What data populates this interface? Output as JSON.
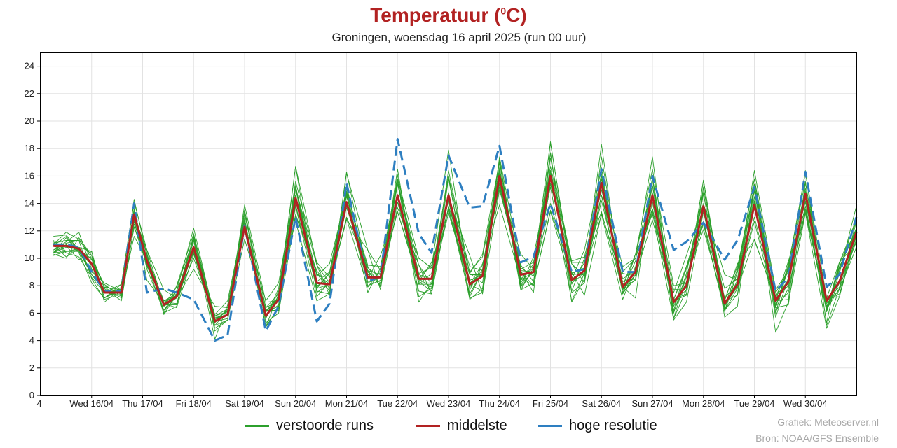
{
  "header": {
    "title_text": "Temperatuur (",
    "title_sup": "0",
    "title_close": "C)",
    "subtitle": "Groningen, woensdag 16 april 2025 (run 00 uur)"
  },
  "legend": {
    "ensemble_label": "verstoorde runs",
    "mean_label": "middelste",
    "hires_label": "hoge resolutie"
  },
  "credits": {
    "line1": "Grafiek: Meteoserver.nl",
    "line2": "Bron: NOAA/GFS Ensemble"
  },
  "colors": {
    "ensemble": "#2ca02c",
    "mean": "#b22222",
    "hires": "#2e7fc1",
    "title": "#b22222",
    "grid": "#e2e2e2"
  },
  "chart_data": {
    "type": "line",
    "title": "Temperatuur (0C)",
    "subtitle": "Groningen, woensdag 16 april 2025 (run 00 uur)",
    "xlabel": "",
    "ylabel": "",
    "ylim": [
      0,
      25
    ],
    "xlim": [
      0,
      96
    ],
    "x_unit": "time step (3-hourly index from start of run)",
    "yticks": [
      0,
      2,
      4,
      6,
      8,
      10,
      12,
      14,
      16,
      18,
      20,
      22,
      24
    ],
    "grid": true,
    "first_tick_label": "4",
    "day_ticks": [
      {
        "x": 6,
        "label": "Wed 16/04"
      },
      {
        "x": 12,
        "label": "Thu 17/04"
      },
      {
        "x": 18,
        "label": "Fri 18/04"
      },
      {
        "x": 24,
        "label": "Sat 19/04"
      },
      {
        "x": 30,
        "label": "Sun 20/04"
      },
      {
        "x": 36,
        "label": "Mon 21/04"
      },
      {
        "x": 42,
        "label": "Tue 22/04"
      },
      {
        "x": 48,
        "label": "Wed 23/04"
      },
      {
        "x": 54,
        "label": "Thu 24/04"
      },
      {
        "x": 60,
        "label": "Fri 25/04"
      },
      {
        "x": 66,
        "label": "Sat 26/04"
      },
      {
        "x": 72,
        "label": "Sun 27/04"
      },
      {
        "x": 78,
        "label": "Mon 28/04"
      },
      {
        "x": 84,
        "label": "Tue 29/04"
      },
      {
        "x": 90,
        "label": "Wed 30/04"
      }
    ],
    "series": [
      {
        "name": "middelste",
        "x": [
          1.5,
          3,
          4.5,
          6,
          7.5,
          9.5,
          11,
          12.5,
          14.5,
          16,
          18,
          20.5,
          22,
          24,
          26.5,
          28,
          30,
          32.5,
          34,
          36,
          38.5,
          40,
          42,
          44.5,
          46,
          48,
          50.5,
          52,
          54,
          56.5,
          58,
          60,
          62.5,
          64,
          66,
          68.5,
          70,
          72,
          74.5,
          76,
          78,
          80.5,
          82,
          84,
          86.5,
          88,
          90,
          92.5,
          94,
          96
        ],
        "values": [
          10.9,
          10.9,
          10.7,
          9.6,
          7.5,
          7.5,
          13.2,
          9.8,
          6.6,
          7.2,
          10.8,
          5.4,
          5.9,
          12.3,
          5.8,
          7.0,
          14.4,
          8.2,
          8.1,
          14.1,
          8.6,
          8.6,
          14.6,
          8.5,
          8.5,
          14.6,
          8.1,
          8.7,
          16.0,
          8.8,
          9.0,
          16.0,
          8.4,
          9.1,
          15.5,
          7.9,
          9.0,
          14.6,
          6.8,
          8.0,
          13.8,
          6.7,
          8.1,
          13.9,
          6.9,
          8.3,
          14.7,
          6.9,
          8.3,
          11.9
        ]
      },
      {
        "name": "hoge resolutie",
        "x": [
          1.5,
          3,
          4.5,
          6,
          7.5,
          9.5,
          11,
          12.5,
          14.5,
          16,
          18,
          20.5,
          22,
          24,
          26.5,
          28,
          30,
          32.5,
          34,
          36,
          38.5,
          40,
          42,
          44.5,
          46,
          48,
          50.5,
          52,
          54,
          56.5,
          58,
          60,
          62.5,
          64,
          66,
          68.5,
          70,
          72,
          74.5,
          76,
          78,
          80.5,
          82,
          84,
          86.5,
          88,
          90,
          92.5,
          94,
          96
        ],
        "values": [
          11.0,
          11.0,
          10.8,
          9.0,
          7.6,
          7.6,
          14.0,
          7.5,
          7.8,
          7.5,
          7.0,
          4.0,
          4.4,
          12.4,
          4.7,
          6.5,
          13.0,
          5.4,
          6.7,
          15.5,
          8.3,
          8.7,
          18.7,
          11.8,
          10.4,
          17.5,
          13.7,
          13.8,
          18.2,
          9.7,
          10.1,
          14.0,
          9.0,
          9.2,
          16.5,
          9.0,
          9.0,
          16.0,
          10.6,
          11.2,
          12.6,
          9.9,
          11.3,
          15.2,
          7.6,
          8.6,
          16.3,
          7.9,
          8.8,
          13.0
        ]
      }
    ],
    "ensemble_members": [
      [
        10.6,
        11.2,
        11.9,
        9.2,
        7.8,
        6.9,
        12.3,
        9.5,
        6.6,
        7.9,
        11.4,
        5.7,
        5.8,
        13.9,
        6.8,
        6.9,
        16.7,
        9.5,
        8.2,
        12.9,
        7.9,
        9.1,
        15.4,
        9.5,
        8.1,
        14.3,
        7.0,
        7.8,
        16.4,
        7.7,
        8.2,
        15.4,
        9.6,
        8.2,
        15.5,
        9.4,
        10.0,
        13.6,
        6.7,
        8.1,
        15.7,
        6.6,
        7.9,
        12.7,
        6.4,
        9.4,
        16.3,
        7.1,
        7.2,
        11.7
      ],
      [
        11.0,
        11.9,
        11.4,
        10.0,
        7.9,
        7.7,
        12.7,
        9.5,
        6.7,
        7.1,
        9.2,
        6.5,
        6.4,
        12.1,
        6.9,
        8.2,
        15.2,
        7.8,
        8.9,
        14.9,
        9.1,
        8.0,
        15.6,
        8.9,
        9.3,
        17.9,
        7.7,
        9.5,
        15.2,
        9.0,
        8.0,
        13.5,
        9.0,
        7.3,
        13.3,
        8.3,
        8.5,
        15.8,
        5.6,
        7.7,
        14.7,
        6.5,
        8.1,
        15.3,
        4.6,
        6.8,
        13.3,
        6.5,
        8.4,
        12.2
      ],
      [
        10.4,
        11.5,
        10.4,
        8.2,
        7.1,
        8.1,
        14.1,
        10.6,
        7.7,
        7.1,
        10.0,
        5.6,
        5.9,
        13.5,
        6.4,
        7.4,
        16.7,
        7.5,
        8.2,
        13.9,
        9.4,
        7.9,
        13.7,
        9.5,
        7.4,
        15.8,
        7.9,
        9.2,
        17.2,
        8.2,
        9.6,
        16.7,
        9.8,
        10.1,
        15.3,
        7.7,
        9.8,
        17.4,
        5.6,
        8.7,
        12.5,
        6.1,
        9.0,
        15.8,
        7.5,
        9.0,
        13.3,
        4.9,
        7.2,
        12.2
      ],
      [
        10.5,
        10.9,
        9.9,
        10.5,
        6.8,
        7.8,
        12.8,
        10.4,
        5.9,
        7.4,
        10.4,
        5.4,
        6.3,
        12.5,
        6.2,
        6.2,
        15.1,
        7.6,
        7.4,
        16.3,
        8.8,
        8.9,
        15.6,
        6.8,
        8.2,
        16.0,
        8.9,
        10.3,
        17.1,
        7.7,
        9.3,
        15.2,
        6.9,
        8.9,
        18.3,
        7.4,
        8.8,
        15.9,
        6.5,
        8.6,
        12.1,
        6.6,
        8.1,
        13.0,
        6.9,
        9.8,
        13.6,
        6.2,
        9.7,
        11.1
      ],
      [
        11.3,
        10.5,
        10.5,
        9.5,
        7.5,
        8.1,
        14.3,
        10.2,
        6.0,
        6.5,
        11.3,
        4.1,
        6.6,
        12.9,
        5.0,
        7.4,
        15.6,
        9.7,
        8.6,
        14.7,
        7.5,
        9.3,
        15.7,
        8.3,
        7.6,
        14.8,
        8.4,
        8.8,
        15.5,
        9.1,
        9.0,
        18.5,
        8.5,
        10.6,
        16.6,
        7.5,
        8.5,
        15.3,
        7.7,
        7.8,
        15.7,
        6.2,
        7.8,
        11.4,
        6.9,
        7.0,
        15.5,
        6.7,
        7.7,
        10.8
      ],
      [
        10.3,
        10.0,
        11.5,
        10.2,
        7.1,
        7.8,
        13.6,
        9.6,
        6.0,
        8.0,
        11.8,
        5.4,
        5.6,
        12.5,
        6.1,
        7.2,
        15.1,
        9.5,
        7.3,
        15.3,
        8.7,
        8.1,
        14.1,
        8.3,
        9.7,
        13.5,
        8.1,
        9.6,
        13.9,
        8.4,
        9.0,
        17.7,
        7.6,
        10.0,
        13.4,
        7.7,
        8.8,
        14.8,
        6.0,
        8.9,
        14.8,
        5.7,
        6.5,
        15.4,
        6.5,
        7.5,
        13.6,
        6.1,
        9.3,
        12.2
      ],
      [
        11.2,
        10.4,
        10.1,
        8.6,
        7.5,
        7.3,
        13.3,
        10.0,
        6.6,
        7.6,
        12.2,
        5.6,
        6.1,
        13.5,
        5.3,
        6.0,
        13.1,
        9.1,
        7.8,
        13.0,
        9.3,
        8.6,
        13.4,
        8.2,
        8.2,
        16.4,
        8.9,
        8.2,
        16.2,
        8.6,
        8.0,
        13.4,
        8.2,
        8.9,
        13.2,
        7.0,
        9.4,
        13.4,
        5.5,
        6.8,
        13.4,
        6.5,
        9.2,
        15.8,
        6.4,
        6.6,
        14.9,
        6.3,
        7.8,
        11.6
      ],
      [
        10.2,
        10.5,
        10.7,
        8.8,
        7.6,
        7.6,
        13.3,
        10.3,
        6.5,
        7.1,
        11.6,
        5.1,
        6.2,
        12.6,
        5.9,
        6.6,
        15.2,
        8.7,
        9.6,
        14.6,
        8.5,
        10.2,
        14.1,
        10.0,
        9.3,
        14.5,
        9.0,
        10.1,
        16.4,
        9.2,
        9.7,
        16.2,
        7.5,
        8.2,
        17.4,
        8.0,
        10.3,
        13.2,
        7.5,
        10.2,
        14.0,
        8.8,
        8.4,
        15.4,
        7.2,
        8.4,
        16.4,
        5.1,
        7.8,
        11.6
      ],
      [
        11.6,
        11.7,
        10.6,
        9.0,
        8.2,
        7.6,
        13.4,
        8.4,
        6.8,
        7.3,
        11.5,
        4.9,
        5.5,
        11.4,
        6.2,
        7.0,
        13.9,
        7.8,
        8.1,
        14.8,
        8.0,
        8.4,
        15.4,
        8.5,
        9.5,
        14.3,
        10.2,
        7.4,
        15.0,
        9.1,
        7.5,
        17.7,
        6.8,
        8.5,
        14.6,
        9.0,
        10.0,
        13.6,
        7.0,
        7.4,
        15.2,
        7.0,
        9.4,
        15.0,
        6.6,
        8.5,
        13.8,
        6.4,
        9.1,
        13.0
      ],
      [
        11.1,
        11.3,
        11.3,
        8.5,
        7.0,
        7.4,
        13.1,
        10.6,
        6.6,
        6.6,
        11.7,
        5.8,
        6.3,
        12.3,
        5.7,
        7.8,
        15.2,
        8.3,
        9.0,
        15.1,
        9.0,
        8.2,
        16.5,
        7.2,
        7.8,
        13.7,
        7.2,
        9.1,
        15.5,
        10.3,
        9.2,
        18.4,
        8.9,
        9.3,
        16.0,
        7.4,
        10.3,
        16.5,
        8.0,
        8.2,
        13.5,
        7.8,
        8.5,
        16.4,
        7.7,
        9.1,
        14.2,
        7.1,
        9.7,
        12.0
      ],
      [
        10.9,
        11.6,
        10.5,
        8.8,
        7.7,
        7.4,
        11.6,
        9.9,
        6.7,
        6.4,
        10.3,
        5.5,
        6.2,
        12.7,
        6.1,
        6.5,
        14.6,
        7.9,
        8.9,
        14.5,
        9.5,
        9.4,
        15.8,
        10.0,
        9.3,
        14.2,
        7.4,
        9.1,
        16.6,
        7.9,
        10.1,
        16.4,
        9.6,
        8.7,
        14.2,
        7.9,
        7.1,
        15.9,
        7.0,
        9.4,
        13.6,
        6.5,
        8.4,
        14.2,
        6.4,
        9.6,
        15.6,
        6.1,
        8.9,
        13.8
      ],
      [
        11.0,
        10.1,
        10.7,
        9.9,
        8.1,
        7.2,
        13.4,
        9.2,
        6.2,
        7.6,
        10.7,
        5.8,
        6.1,
        12.8,
        5.6,
        7.6,
        12.7,
        6.9,
        7.4,
        16.2,
        10.6,
        7.7,
        16.1,
        8.1,
        8.1,
        13.3,
        8.1,
        7.6,
        17.4,
        9.3,
        8.7,
        14.0,
        8.5,
        8.9,
        15.8,
        7.8,
        8.4,
        14.1,
        6.1,
        8.3,
        12.7,
        6.9,
        9.6,
        11.3,
        7.1,
        8.0,
        14.7,
        5.3,
        9.7,
        12.7
      ],
      [
        10.4,
        10.5,
        10.6,
        8.8,
        8.0,
        7.4,
        12.9,
        9.6,
        6.8,
        6.7,
        10.7,
        5.1,
        5.5,
        12.6,
        6.1,
        7.1,
        13.2,
        8.9,
        8.1,
        12.8,
        10.6,
        9.1,
        14.5,
        7.6,
        7.4,
        13.8,
        8.8,
        8.8,
        15.2,
        9.5,
        8.3,
        16.3,
        8.1,
        9.7,
        16.2,
        7.9,
        10.3,
        15.3,
        6.2,
        9.4,
        12.6,
        6.2,
        9.0,
        14.9,
        6.0,
        9.4,
        14.1,
        6.9,
        7.4,
        11.4
      ],
      [
        10.6,
        11.1,
        11.3,
        10.2,
        7.9,
        7.1,
        12.3,
        9.9,
        6.2,
        7.2,
        10.8,
        5.9,
        6.9,
        12.9,
        5.0,
        6.4,
        14.6,
        8.9,
        7.6,
        13.9,
        8.2,
        8.7,
        14.4,
        8.1,
        8.9,
        16.0,
        7.1,
        7.5,
        16.4,
        8.1,
        9.0,
        17.3,
        9.7,
        9.7,
        15.0,
        8.9,
        8.7,
        12.8,
        7.0,
        9.2,
        13.6,
        7.1,
        8.2,
        14.5,
        5.7,
        8.6,
        16.3,
        6.3,
        8.2,
        11.2
      ],
      [
        10.4,
        10.8,
        10.8,
        10.5,
        7.1,
        7.9,
        12.5,
        10.1,
        6.9,
        7.2,
        11.3,
        4.7,
        5.5,
        12.4,
        5.0,
        6.4,
        13.8,
        7.2,
        8.3,
        13.7,
        9.1,
        8.8,
        13.4,
        8.5,
        7.9,
        14.5,
        9.4,
        9.1,
        17.0,
        7.9,
        9.1,
        16.4,
        8.2,
        9.2,
        14.6,
        7.5,
        9.3,
        14.6,
        6.8,
        7.7,
        13.7,
        6.2,
        7.4,
        15.0,
        6.1,
        7.8,
        13.4,
        6.3,
        9.4,
        12.0
      ],
      [
        10.4,
        11.0,
        10.5,
        10.0,
        7.1,
        7.7,
        13.6,
        9.4,
        6.9,
        7.4,
        10.5,
        5.3,
        6.3,
        13.2,
        6.4,
        6.9,
        15.3,
        8.0,
        8.4,
        13.9,
        8.3,
        8.6,
        15.6,
        8.8,
        8.5,
        13.6,
        8.2,
        8.9,
        15.4,
        8.5,
        9.3,
        15.5,
        8.8,
        8.9,
        14.6,
        8.5,
        9.1,
        13.6,
        6.9,
        7.3,
        15.1,
        6.9,
        7.3,
        14.1,
        7.2,
        9.2,
        15.1,
        7.0,
        7.9,
        12.7
      ]
    ]
  }
}
